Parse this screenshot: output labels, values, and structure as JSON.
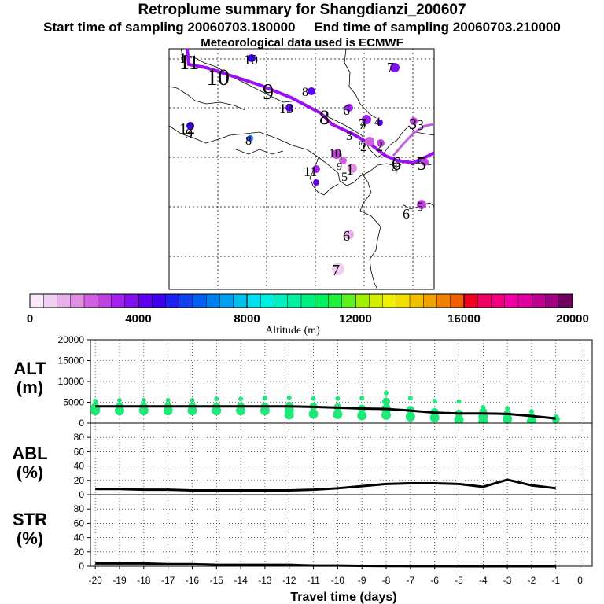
{
  "header": {
    "title": "Retroplume summary for Shangdianzi_200607",
    "start_label": "Start time of sampling 20060703.180000",
    "end_label": "End time of sampling 20060703.210000",
    "met_label": "Meteorological data used is ECMWF"
  },
  "chart_data": [
    {
      "type": "map",
      "title": "Retroplume summary for Shangdianzi_200607",
      "trajectory_labels": [
        "1",
        "2",
        "3",
        "4",
        "5",
        "6",
        "7",
        "8",
        "9",
        "10",
        "11",
        "12",
        "13"
      ],
      "numbers_shown": [
        "11",
        "10",
        "9",
        "8",
        "6",
        "5",
        "4",
        "3",
        "2",
        "1",
        "12",
        "13",
        "10",
        "9",
        "8",
        "7",
        "6",
        "5",
        "4",
        "3",
        "2",
        "1",
        "11",
        "10",
        "9",
        "8",
        "7",
        "6",
        "5"
      ]
    },
    {
      "type": "colorbar",
      "xlabel": "Altitude (m)",
      "range": [
        0,
        20000
      ],
      "tick_labels": [
        "0",
        "4000",
        "8000",
        "12000",
        "16000",
        "20000"
      ],
      "colors": [
        "#f8e8f8",
        "#f0d0f0",
        "#e8b0e8",
        "#e090e0",
        "#d060e0",
        "#c040e0",
        "#a020f0",
        "#8010f0",
        "#6000f0",
        "#4000f0",
        "#2020f0",
        "#1040f0",
        "#0060f0",
        "#0080f0",
        "#00a0f0",
        "#00c0f0",
        "#00e0f0",
        "#00f0e0",
        "#00f0c0",
        "#00f0a0",
        "#00f080",
        "#00f060",
        "#20f040",
        "#60f020",
        "#a0f000",
        "#d0f000",
        "#f0f000",
        "#f0e000",
        "#f0c000",
        "#f0a000",
        "#f08000",
        "#f06000",
        "#f00020",
        "#f00060",
        "#f00080",
        "#f000a0",
        "#e000a0",
        "#c00090",
        "#a00080",
        "#700060"
      ]
    },
    {
      "type": "line+scatter",
      "ylabel": "ALT\n(m)",
      "ylabel_lines": [
        "ALT",
        "(m)"
      ],
      "ylim": [
        0,
        20000
      ],
      "y_ticks": [
        "20000",
        "15000",
        "10000",
        "5000",
        "0"
      ],
      "x": [
        -20,
        -19,
        -18,
        -17,
        -16,
        -15,
        -14,
        -13,
        -12,
        -11,
        -10,
        -9,
        -8,
        -7,
        -6,
        -5,
        -4,
        -3,
        -2,
        -1
      ],
      "mean": [
        4000,
        4000,
        4000,
        4000,
        4000,
        4000,
        4000,
        4000,
        4000,
        3900,
        3700,
        3500,
        3400,
        3000,
        2500,
        2300,
        2300,
        2200,
        1700,
        1100
      ],
      "scatter": [
        {
          "x": -20,
          "y": [
            5300,
            4000,
            3500,
            3000
          ]
        },
        {
          "x": -19,
          "y": [
            5500,
            4000,
            3000
          ]
        },
        {
          "x": -18,
          "y": [
            5500,
            4000,
            3000
          ]
        },
        {
          "x": -17,
          "y": [
            5500,
            4000,
            3000
          ]
        },
        {
          "x": -16,
          "y": [
            5500,
            4000,
            3000
          ]
        },
        {
          "x": -15,
          "y": [
            5800,
            4000,
            3000
          ]
        },
        {
          "x": -14,
          "y": [
            5800,
            4000,
            3000
          ]
        },
        {
          "x": -13,
          "y": [
            6000,
            4000,
            3000
          ]
        },
        {
          "x": -12,
          "y": [
            6100,
            4200,
            3100,
            2000
          ]
        },
        {
          "x": -11,
          "y": [
            5900,
            4000,
            2200
          ]
        },
        {
          "x": -10,
          "y": [
            5900,
            3800,
            2100
          ]
        },
        {
          "x": -9,
          "y": [
            6000,
            3500,
            1800
          ]
        },
        {
          "x": -8,
          "y": [
            7200,
            5200,
            3400,
            1900
          ]
        },
        {
          "x": -7,
          "y": [
            6000,
            3200,
            1500
          ]
        },
        {
          "x": -6,
          "y": [
            5300,
            2700,
            1300
          ]
        },
        {
          "x": -5,
          "y": [
            5200,
            2300,
            800
          ]
        },
        {
          "x": -4,
          "y": [
            3800,
            2800,
            1500,
            400
          ]
        },
        {
          "x": -3,
          "y": [
            3500,
            2200,
            1000
          ]
        },
        {
          "x": -2,
          "y": [
            2800,
            1500,
            500
          ]
        },
        {
          "x": -1,
          "y": [
            1500,
            900
          ]
        }
      ]
    },
    {
      "type": "line",
      "ylabel": "ABL\n(%)",
      "ylabel_lines": [
        "ABL",
        "(%)"
      ],
      "ylim": [
        0,
        100
      ],
      "y_ticks": [
        "80",
        "60",
        "40",
        "20",
        "0"
      ],
      "x": [
        -20,
        -19,
        -18,
        -17,
        -16,
        -15,
        -14,
        -13,
        -12,
        -11,
        -10,
        -9,
        -8,
        -7,
        -6,
        -5,
        -4,
        -3,
        -2,
        -1
      ],
      "values": [
        8,
        8,
        7,
        7,
        6,
        6,
        6,
        6,
        6,
        7,
        9,
        12,
        15,
        16,
        16,
        15,
        11,
        21,
        13,
        9
      ]
    },
    {
      "type": "line",
      "ylabel": "STR\n(%)",
      "ylabel_lines": [
        "STR",
        "(%)"
      ],
      "ylim": [
        0,
        100
      ],
      "y_ticks": [
        "80",
        "60",
        "40",
        "20",
        "0"
      ],
      "x": [
        -20,
        -19,
        -18,
        -17,
        -16,
        -15,
        -14,
        -13,
        -12,
        -11,
        -10,
        -9,
        -8,
        -7,
        -6,
        -5,
        -4,
        -3,
        -2,
        -1
      ],
      "values": [
        4,
        4,
        4,
        3,
        3,
        2,
        2,
        2,
        2,
        1,
        1,
        0.5,
        0.3,
        0.2,
        0.1,
        0,
        0,
        0,
        0,
        0
      ],
      "xlabel": "Travel time (days)",
      "x_tick_labels": [
        "-20",
        "-19",
        "-18",
        "-17",
        "-16",
        "-15",
        "-14",
        "-13",
        "-12",
        "-11",
        "-10",
        "-9",
        "-8",
        "-7",
        "-6",
        "-5",
        "-4",
        "-3",
        "-2",
        "-1",
        "0"
      ]
    }
  ]
}
